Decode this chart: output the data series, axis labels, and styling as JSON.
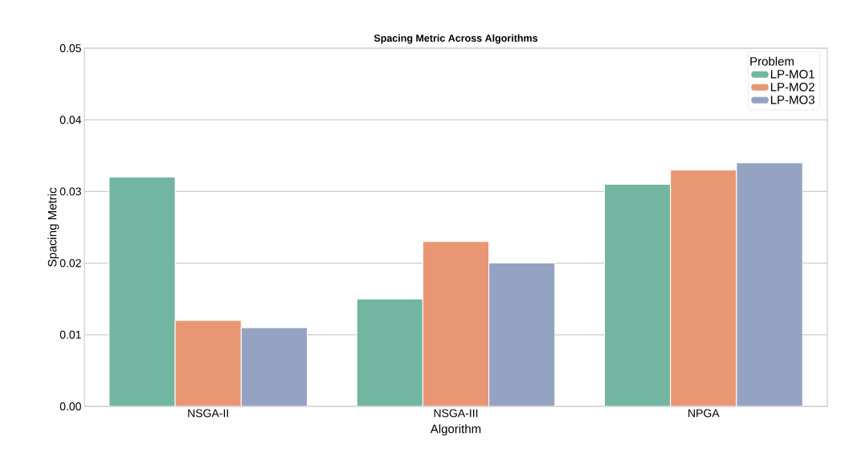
{
  "chart_data": {
    "type": "bar",
    "title": "Spacing Metric Across Algorithms",
    "xlabel": "Algorithm",
    "ylabel": "Spacing Metric",
    "legend_title": "Problem",
    "categories": [
      "NSGA-II",
      "NSGA-III",
      "NPGA"
    ],
    "series": [
      {
        "name": "LP-MO1",
        "color": "#72b6a1",
        "values": [
          0.032,
          0.015,
          0.031
        ]
      },
      {
        "name": "LP-MO2",
        "color": "#e99675",
        "values": [
          0.012,
          0.023,
          0.033
        ]
      },
      {
        "name": "LP-MO3",
        "color": "#95a3c3",
        "values": [
          0.011,
          0.02,
          0.034
        ]
      }
    ],
    "ylim": [
      0,
      0.05
    ],
    "yticks": [
      {
        "value": 0,
        "label": "0.00"
      },
      {
        "value": 0.01,
        "label": "0.01"
      },
      {
        "value": 0.02,
        "label": "0.02"
      },
      {
        "value": 0.03,
        "label": "0.03"
      },
      {
        "value": 0.04,
        "label": "0.04"
      },
      {
        "value": 0.05,
        "label": "0.05"
      }
    ],
    "grid": "y",
    "legend": "top right"
  }
}
